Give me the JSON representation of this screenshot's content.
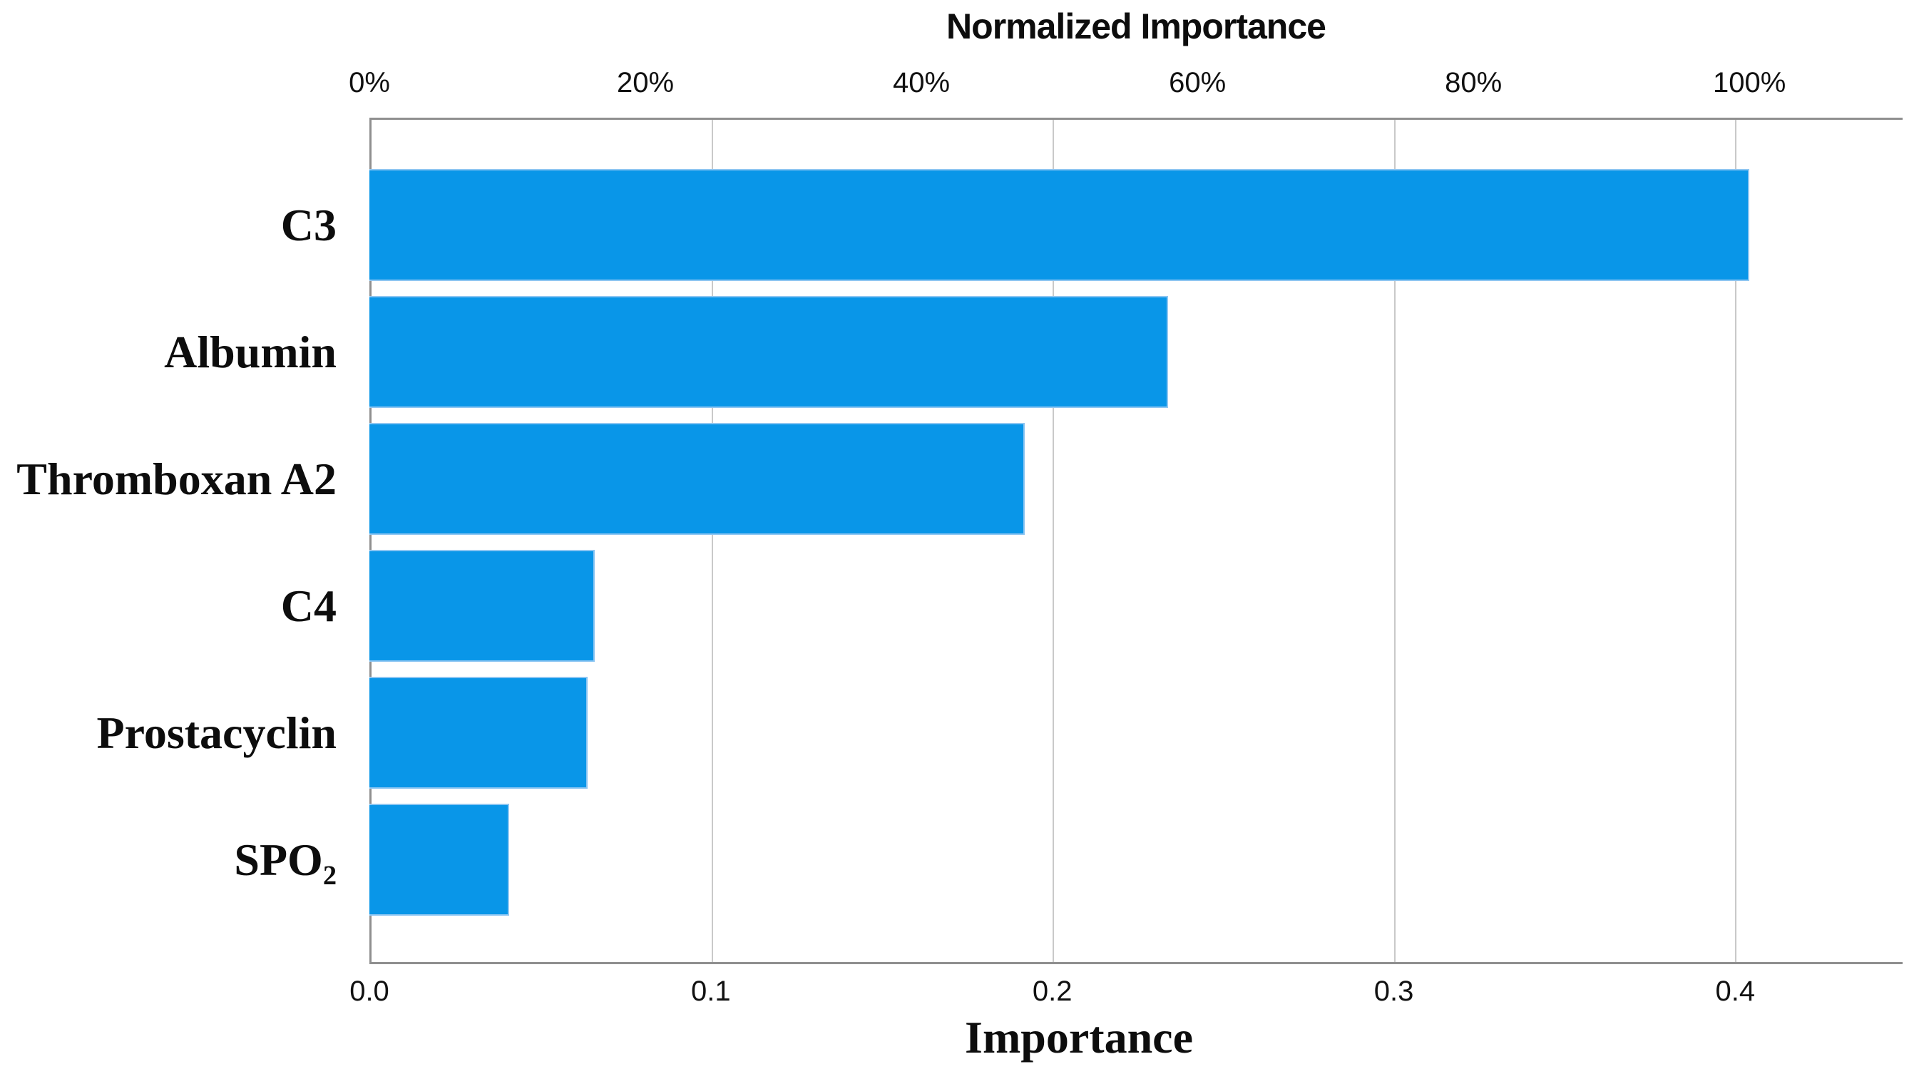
{
  "chart_data": {
    "type": "bar",
    "orientation": "horizontal",
    "title": "Normalized Importance",
    "xlabel_bottom": "Importance",
    "xlabel_top": "Normalized Importance",
    "legend": "none",
    "grid": "vertical gridlines at bottom-axis ticks, full plot height",
    "categories": [
      "C3",
      "Albumin",
      "Thromboxan A2",
      "C4",
      "Prostacyclin",
      "SPO₂"
    ],
    "series": [
      {
        "name": "Importance",
        "values": [
          0.404,
          0.234,
          0.192,
          0.066,
          0.064,
          0.041
        ]
      },
      {
        "name": "Normalized Importance (%)",
        "values": [
          100,
          57.8,
          47.5,
          16.4,
          16.0,
          10.2
        ]
      }
    ],
    "bottom_axis": {
      "label": "Importance",
      "range": [
        0,
        0.449
      ],
      "ticks": [
        {
          "label": "0.0",
          "value": 0.0
        },
        {
          "label": "0.1",
          "value": 0.1
        },
        {
          "label": "0.2",
          "value": 0.2
        },
        {
          "label": "0.3",
          "value": 0.3
        },
        {
          "label": "0.4",
          "value": 0.4
        }
      ]
    },
    "top_axis": {
      "label": "Normalized Importance",
      "range": [
        0,
        111.1
      ],
      "ticks": [
        {
          "label": "0%",
          "value": 0
        },
        {
          "label": "20%",
          "value": 20
        },
        {
          "label": "40%",
          "value": 40
        },
        {
          "label": "60%",
          "value": 60
        },
        {
          "label": "80%",
          "value": 80
        },
        {
          "label": "100%",
          "value": 100
        }
      ]
    },
    "bar_color": "#0996e8",
    "bar_border_color": "#8ec6f2",
    "axis_line_color": "#8f8f8f",
    "grid_color": "#c9c9c9",
    "text_color": "#0d0d0d"
  }
}
